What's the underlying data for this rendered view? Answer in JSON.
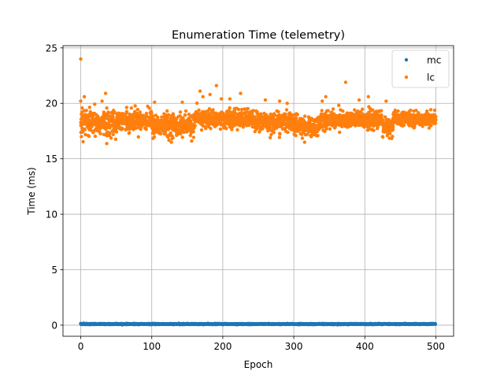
{
  "chart_data": {
    "type": "scatter",
    "title": "Enumeration Time (telemetry)",
    "xlabel": "Epoch",
    "ylabel": "Time (ms)",
    "xlim": [
      -25,
      525
    ],
    "ylim": [
      -1.0,
      25.2
    ],
    "xticks": [
      0,
      100,
      200,
      300,
      400,
      500
    ],
    "yticks": [
      0,
      5,
      10,
      15,
      20,
      25
    ],
    "grid": true,
    "legend_placement": "top-right",
    "series": [
      {
        "name": "mc",
        "color": "#1f77b4",
        "x_range": [
          0,
          500
        ],
        "segments": [
          {
            "from": 0,
            "to": 500,
            "center": 0.1,
            "spread": 0.02
          }
        ],
        "outliers": [
          {
            "x": 0,
            "y": 0.15
          },
          {
            "x": 4,
            "y": 0.18
          },
          {
            "x": 8,
            "y": 0.16
          },
          {
            "x": 150,
            "y": 0.15
          },
          {
            "x": 195,
            "y": 0.15
          },
          {
            "x": 457,
            "y": 0.15
          }
        ]
      },
      {
        "name": "lc",
        "color": "#ff7f0e",
        "x_range": [
          0,
          500
        ],
        "segments": [
          {
            "from": 0,
            "to": 50,
            "center": 18.2,
            "spread": 0.55
          },
          {
            "from": 50,
            "to": 100,
            "center": 18.5,
            "spread": 0.45
          },
          {
            "from": 100,
            "to": 160,
            "center": 18.0,
            "spread": 0.5
          },
          {
            "from": 160,
            "to": 245,
            "center": 18.6,
            "spread": 0.4
          },
          {
            "from": 245,
            "to": 300,
            "center": 18.3,
            "spread": 0.45
          },
          {
            "from": 300,
            "to": 335,
            "center": 17.9,
            "spread": 0.45
          },
          {
            "from": 335,
            "to": 425,
            "center": 18.5,
            "spread": 0.4
          },
          {
            "from": 425,
            "to": 440,
            "center": 17.9,
            "spread": 0.45
          },
          {
            "from": 440,
            "to": 500,
            "center": 18.6,
            "spread": 0.3
          }
        ],
        "outliers": [
          {
            "x": 0,
            "y": 24.0
          },
          {
            "x": 0,
            "y": 20.2
          },
          {
            "x": 5,
            "y": 20.6
          },
          {
            "x": 1,
            "y": 17.0
          },
          {
            "x": 30,
            "y": 20.2
          },
          {
            "x": 35,
            "y": 20.9
          },
          {
            "x": 104,
            "y": 20.1
          },
          {
            "x": 143,
            "y": 20.1
          },
          {
            "x": 168,
            "y": 21.1
          },
          {
            "x": 172,
            "y": 20.6
          },
          {
            "x": 182,
            "y": 20.8
          },
          {
            "x": 191,
            "y": 21.6
          },
          {
            "x": 198,
            "y": 20.4
          },
          {
            "x": 210,
            "y": 20.4
          },
          {
            "x": 225,
            "y": 20.9
          },
          {
            "x": 260,
            "y": 20.3
          },
          {
            "x": 280,
            "y": 20.2
          },
          {
            "x": 340,
            "y": 20.2
          },
          {
            "x": 345,
            "y": 20.6
          },
          {
            "x": 373,
            "y": 21.9
          },
          {
            "x": 392,
            "y": 20.3
          },
          {
            "x": 405,
            "y": 20.6
          },
          {
            "x": 425,
            "y": 17.0
          },
          {
            "x": 430,
            "y": 20.2
          }
        ]
      }
    ]
  }
}
